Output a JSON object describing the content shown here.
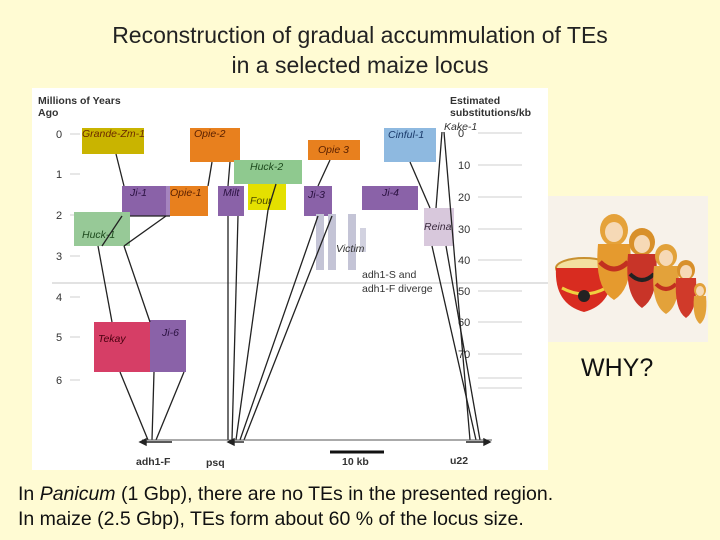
{
  "title": {
    "line1": "Reconstruction of gradual accummulation of TEs",
    "line2": "in a selected maize locus"
  },
  "figure": {
    "left_axis_label_1": "Millions of Years",
    "left_axis_label_2": "Ago",
    "right_axis_label_1": "Estimated",
    "right_axis_label_2": "substitutions/kb",
    "left_ticks": [
      "0",
      "1",
      "2",
      "3",
      "4",
      "5",
      "6"
    ],
    "right_ticks": [
      "0",
      "10",
      "20",
      "30",
      "40",
      "50",
      "60",
      "70"
    ],
    "elements": {
      "grande_zm_1": "Grande-Zm-1",
      "opie_2": "Opie-2",
      "huck_2": "Huck-2",
      "opie_3": "Opie 3",
      "cinful_1": "Cinful-1",
      "kake_1": "Kake-1",
      "ji_1": "Ji-1",
      "opie_1": "Opie-1",
      "milt": "Milt",
      "four": "Four",
      "ji_3": "Ji-3",
      "ji_4": "Ji-4",
      "reina": "Reina",
      "huck_1": "Huck-1",
      "victim": "Victim",
      "tekay": "Tekay",
      "ji_6": "Ji-6"
    },
    "diverge_note_1": "adh1-S and",
    "diverge_note_2": "adh1-F diverge",
    "genes": {
      "adh1f": "adh1-F",
      "psq": "psq",
      "u22": "u22"
    },
    "scale_label": "10 kb",
    "colors": {
      "grande": "#c9b400",
      "opie": "#e8801e",
      "huck2": "#8fc98f",
      "four": "#e4e000",
      "cinful": "#8eb9e0",
      "ji": "#8a62a8",
      "huck1": "#97c997",
      "tekay": "#d63e66",
      "reina": "#d8c8dc",
      "victim": "#c4c4d6"
    }
  },
  "why_text": "WHY?",
  "caption": {
    "line1_pre": "In ",
    "line1_em": "Panicum",
    "line1_post": " (1 Gbp), there are no TEs in the presented region.",
    "line2": "In maize (2.5 Gbp),  TEs form about 60 % of the locus size."
  },
  "image": {
    "dolls": "matryoshka-dolls-image"
  }
}
